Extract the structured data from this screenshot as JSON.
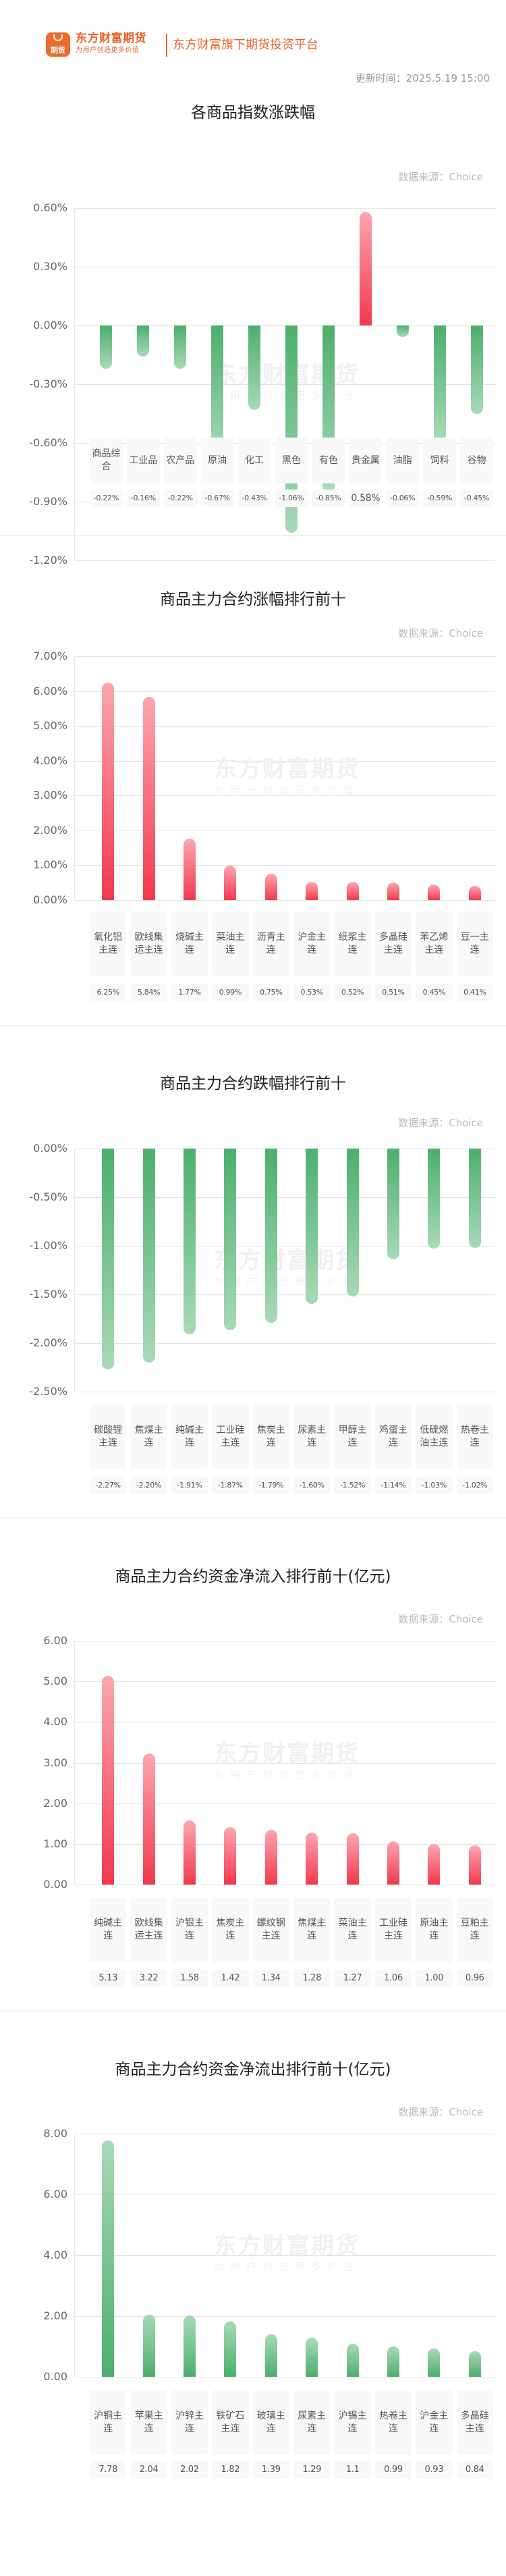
{
  "header": {
    "logo_icon_text": "期货",
    "brand_name": "东方财富期货",
    "brand_slogan": "为用户创造更多价值",
    "tagline": "东方财富旗下期货投资平台",
    "update_time": "更新时间：2025.5.19 15:00"
  },
  "watermark": {
    "line1": "东方财富期货",
    "line2": "为用户创造更多价值"
  },
  "colors": {
    "brand": "#e8622a",
    "up": "#f2394d",
    "down": "#4caf6c"
  },
  "chart_data": [
    {
      "type": "bar",
      "title": "各商品指数涨跌幅",
      "source": "数据来源：Choice",
      "categories": [
        "商品综合",
        "工业品",
        "农产品",
        "原油",
        "化工",
        "黑色",
        "有色",
        "贵金属",
        "油脂",
        "饲料",
        "谷物"
      ],
      "values": [
        -0.22,
        -0.16,
        -0.22,
        -0.67,
        -0.43,
        -1.06,
        -0.85,
        0.58,
        -0.06,
        -0.59,
        -0.45
      ],
      "value_labels": [
        "-0.22%",
        "-0.16%",
        "-0.22%",
        "-0.67%",
        "-0.43%",
        "-1.06%",
        "-0.85%",
        "0.58%",
        "-0.06%",
        "-0.59%",
        "-0.45%"
      ],
      "yticks": [
        "0.60%",
        "0.30%",
        "0.00%",
        "-0.30%",
        "-0.60%",
        "-0.90%",
        "-1.20%"
      ],
      "ylim": [
        -1.2,
        0.6
      ],
      "unit": "%",
      "grid": true
    },
    {
      "type": "bar",
      "title": "商品主力合约涨幅排行前十",
      "source": "数据来源：Choice",
      "categories": [
        "氧化铝主连",
        "欧线集运主连",
        "烧碱主连",
        "菜油主连",
        "沥青主连",
        "沪金主连",
        "纸浆主连",
        "多晶硅主连",
        "苯乙烯主连",
        "豆一主连"
      ],
      "values": [
        6.25,
        5.84,
        1.77,
        0.99,
        0.75,
        0.53,
        0.52,
        0.51,
        0.45,
        0.41
      ],
      "value_labels": [
        "6.25%",
        "5.84%",
        "1.77%",
        "0.99%",
        "0.75%",
        "0.53%",
        "0.52%",
        "0.51%",
        "0.45%",
        "0.41%"
      ],
      "yticks": [
        "7.00%",
        "6.00%",
        "5.00%",
        "4.00%",
        "3.00%",
        "2.00%",
        "1.00%",
        "0.00%"
      ],
      "ylim": [
        0,
        7
      ],
      "unit": "%",
      "grid": true
    },
    {
      "type": "bar",
      "title": "商品主力合约跌幅排行前十",
      "source": "数据来源：Choice",
      "categories": [
        "碳酸锂主连",
        "焦煤主连",
        "纯碱主连",
        "工业硅主连",
        "焦炭主连",
        "尿素主连",
        "甲醇主连",
        "鸡蛋主连",
        "低硫燃油主连",
        "热卷主连"
      ],
      "values": [
        -2.27,
        -2.2,
        -1.91,
        -1.87,
        -1.79,
        -1.6,
        -1.52,
        -1.14,
        -1.03,
        -1.02
      ],
      "value_labels": [
        "-2.27%",
        "-2.20%",
        "-1.91%",
        "-1.87%",
        "-1.79%",
        "-1.60%",
        "-1.52%",
        "-1.14%",
        "-1.03%",
        "-1.02%"
      ],
      "yticks": [
        "0.00%",
        "-0.50%",
        "-1.00%",
        "-1.50%",
        "-2.00%",
        "-2.50%"
      ],
      "ylim": [
        -2.5,
        0
      ],
      "unit": "%",
      "grid": true
    },
    {
      "type": "bar",
      "title": "商品主力合约资金净流入排行前十(亿元)",
      "source": "数据来源：Choice",
      "categories": [
        "纯碱主连",
        "欧线集运主连",
        "沪银主连",
        "焦炭主连",
        "螺纹钢主连",
        "焦煤主连",
        "菜油主连",
        "工业硅主连",
        "原油主连",
        "豆粕主连"
      ],
      "values": [
        5.13,
        3.22,
        1.58,
        1.42,
        1.34,
        1.28,
        1.27,
        1.06,
        1.0,
        0.96
      ],
      "value_labels": [
        "5.13",
        "3.22",
        "1.58",
        "1.42",
        "1.34",
        "1.28",
        "1.27",
        "1.06",
        "1.00",
        "0.96"
      ],
      "yticks": [
        "6.00",
        "5.00",
        "4.00",
        "3.00",
        "2.00",
        "1.00",
        "0.00"
      ],
      "ylim": [
        0,
        6
      ],
      "unit": "亿元",
      "grid": true
    },
    {
      "type": "bar",
      "title": "商品主力合约资金净流出排行前十(亿元)",
      "source": "数据来源：Choice",
      "categories": [
        "沪铜主连",
        "苹果主连",
        "沪锌主连",
        "铁矿石主连",
        "玻璃主连",
        "尿素主连",
        "沪锡主连",
        "热卷主连",
        "沪金主连",
        "多晶硅主连"
      ],
      "values": [
        7.78,
        2.04,
        2.02,
        1.82,
        1.39,
        1.29,
        1.1,
        0.99,
        0.93,
        0.84
      ],
      "value_labels": [
        "7.78",
        "2.04",
        "2.02",
        "1.82",
        "1.39",
        "1.29",
        "1.1",
        "0.99",
        "0.93",
        "0.84"
      ],
      "yticks": [
        "8.00",
        "6.00",
        "4.00",
        "2.00",
        "0.00"
      ],
      "ylim": [
        0,
        8
      ],
      "unit": "亿元",
      "grid": true
    }
  ]
}
